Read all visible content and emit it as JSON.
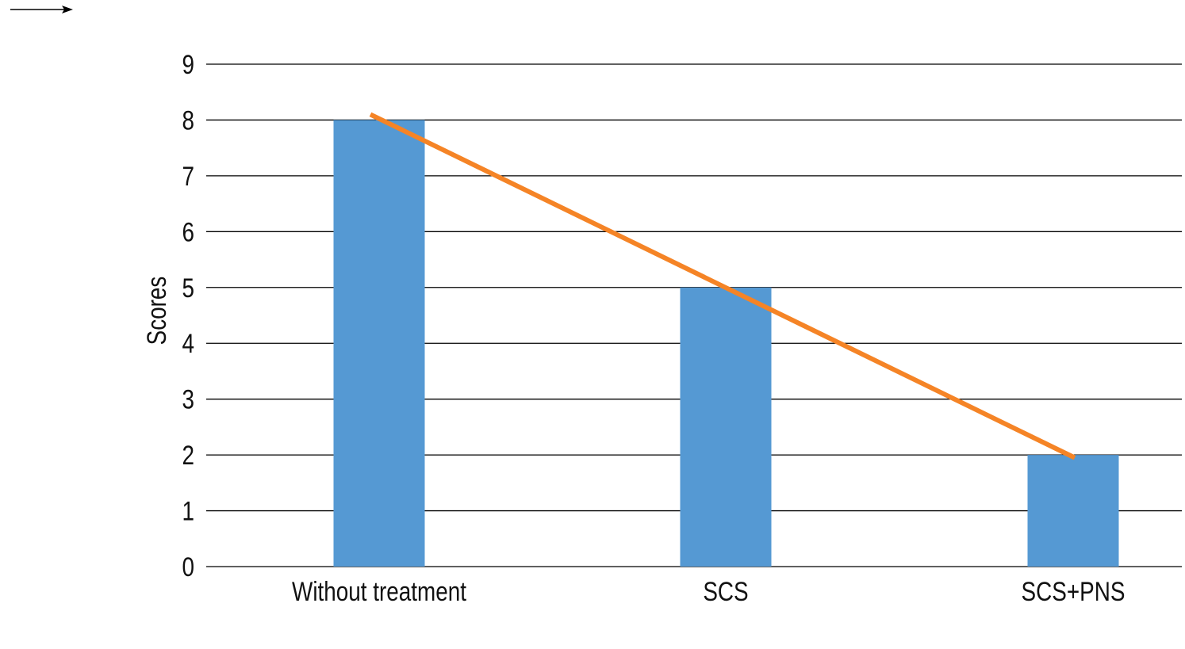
{
  "chart_data": {
    "type": "bar",
    "title": "",
    "xlabel": "",
    "ylabel": "Scores",
    "ylim": [
      0,
      9
    ],
    "yticks": [
      0,
      1,
      2,
      3,
      4,
      5,
      6,
      7,
      8,
      9
    ],
    "grid": true,
    "categories": [
      "Without treatment",
      "SCS",
      "SCS+PNS"
    ],
    "series": [
      {
        "name": "Scores",
        "type": "bar",
        "values": [
          8,
          5,
          2
        ],
        "color": "#5599D3"
      },
      {
        "name": "Trend",
        "type": "line",
        "values": [
          8.1,
          5.0,
          1.95
        ],
        "color": "#F58426"
      }
    ]
  }
}
